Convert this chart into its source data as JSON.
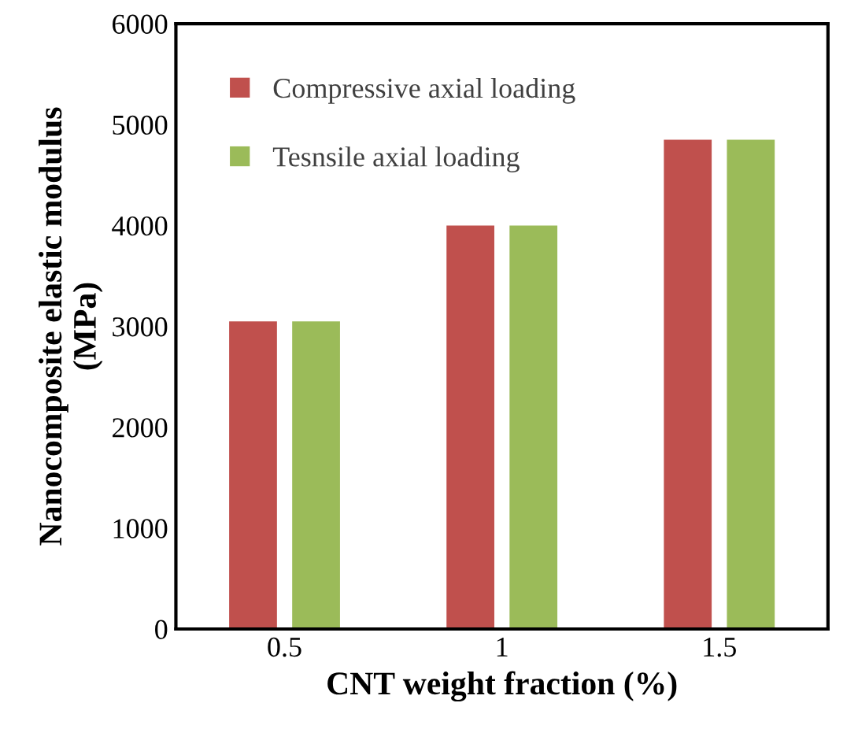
{
  "chart_data": {
    "type": "bar",
    "xlabel": "CNT weight fraction (%)",
    "ylabel": "Nanocomposite elastic modulus\n(MPa)",
    "categories": [
      "0.5",
      "1",
      "1.5"
    ],
    "series": [
      {
        "name": "Compressive axial loading",
        "color": "#c0504d",
        "values": [
          3050,
          4000,
          4850
        ]
      },
      {
        "name": "Tesnsile axial loading",
        "color": "#9bbb59",
        "values": [
          3050,
          4000,
          4850
        ]
      }
    ],
    "ylim": [
      0,
      6000
    ],
    "yticks": [
      0,
      1000,
      2000,
      3000,
      4000,
      5000,
      6000
    ],
    "grid": false,
    "legend": "top left"
  }
}
